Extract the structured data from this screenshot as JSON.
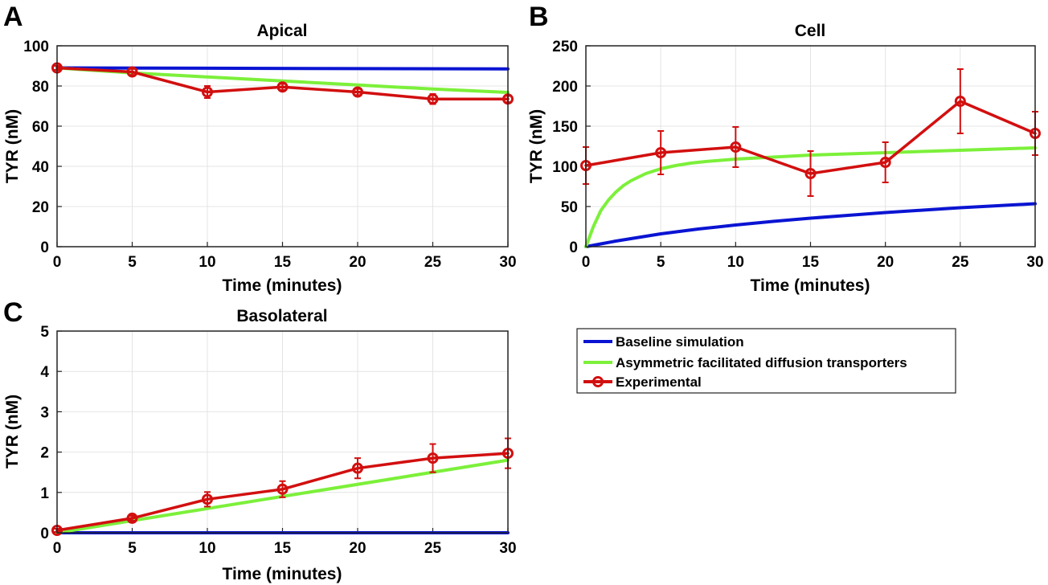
{
  "chart_data": [
    {
      "panel": "A",
      "type": "line",
      "title": "Apical",
      "xlabel": "Time (minutes)",
      "ylabel": "TYR (nM)",
      "xlim": [
        0,
        30
      ],
      "ylim": [
        0,
        100
      ],
      "xticks": [
        0,
        5,
        10,
        15,
        20,
        25,
        30
      ],
      "yticks": [
        0,
        20,
        40,
        60,
        80,
        100
      ],
      "grid": true,
      "series": [
        {
          "name": "Baseline simulation",
          "color": "#0a14d2",
          "style": "line",
          "x": [
            0,
            30
          ],
          "y": [
            89,
            88.5
          ]
        },
        {
          "name": "Asymmetric facilitated diffusion transporters",
          "color": "#7cf03a",
          "style": "line",
          "x": [
            0,
            5,
            10,
            15,
            20,
            25,
            30
          ],
          "y": [
            89,
            86.5,
            84.5,
            82.5,
            80.5,
            78.5,
            76.8
          ]
        },
        {
          "name": "Experimental",
          "color": "#d20f0f",
          "style": "marker-line",
          "x": [
            0,
            5,
            10,
            15,
            20,
            25,
            30
          ],
          "y": [
            89,
            87,
            77,
            79.5,
            77,
            73.5,
            73.5
          ],
          "err": [
            1,
            1.5,
            3,
            1.5,
            1.5,
            2.5,
            1.5
          ]
        }
      ]
    },
    {
      "panel": "B",
      "type": "line",
      "title": "Cell",
      "xlabel": "Time (minutes)",
      "ylabel": "TYR (nM)",
      "xlim": [
        0,
        30
      ],
      "ylim": [
        0,
        250
      ],
      "xticks": [
        0,
        5,
        10,
        15,
        20,
        25,
        30
      ],
      "yticks": [
        0,
        50,
        100,
        150,
        200,
        250
      ],
      "grid": true,
      "series": [
        {
          "name": "Baseline simulation",
          "color": "#0a14d2",
          "style": "line",
          "x": [
            0,
            1,
            2,
            3,
            5,
            7.5,
            10,
            12.5,
            15,
            17.5,
            20,
            22.5,
            25,
            27.5,
            30
          ],
          "y": [
            0,
            3.5,
            7,
            10,
            16,
            22,
            27,
            31.5,
            35.5,
            39,
            42.5,
            45.5,
            48.5,
            51,
            53.5
          ]
        },
        {
          "name": "Asymmetric facilitated diffusion transporters",
          "color": "#7cf03a",
          "style": "line",
          "x": [
            0,
            0.5,
            1,
            1.5,
            2,
            2.5,
            3,
            4,
            5,
            6,
            7,
            8,
            10,
            12,
            15,
            20,
            25,
            30
          ],
          "y": [
            0,
            25,
            45,
            58,
            68,
            76,
            82,
            91,
            97,
            101,
            104,
            106,
            109,
            111,
            114,
            117,
            120,
            123
          ]
        },
        {
          "name": "Experimental",
          "color": "#d20f0f",
          "style": "marker-line",
          "x": [
            0,
            5,
            10,
            15,
            20,
            25,
            30
          ],
          "y": [
            101,
            117,
            124,
            91,
            105,
            181,
            141
          ],
          "err": [
            23,
            27,
            25,
            28,
            25,
            40,
            27
          ]
        }
      ]
    },
    {
      "panel": "C",
      "type": "line",
      "title": "Basolateral",
      "xlabel": "Time (minutes)",
      "ylabel": "TYR (nM)",
      "xlim": [
        0,
        30
      ],
      "ylim": [
        0,
        5
      ],
      "xticks": [
        0,
        5,
        10,
        15,
        20,
        25,
        30
      ],
      "yticks": [
        0,
        1,
        2,
        3,
        4,
        5
      ],
      "grid": true,
      "series": [
        {
          "name": "Baseline simulation",
          "color": "#0a14d2",
          "style": "line",
          "x": [
            0,
            30
          ],
          "y": [
            0,
            0
          ]
        },
        {
          "name": "Asymmetric facilitated diffusion transporters",
          "color": "#7cf03a",
          "style": "line",
          "x": [
            0,
            30
          ],
          "y": [
            0,
            1.8
          ]
        },
        {
          "name": "Experimental",
          "color": "#d20f0f",
          "style": "marker-line",
          "x": [
            0,
            5,
            10,
            15,
            20,
            25,
            30
          ],
          "y": [
            0.06,
            0.36,
            0.83,
            1.08,
            1.6,
            1.85,
            1.97
          ],
          "err": [
            0.04,
            0.06,
            0.18,
            0.2,
            0.25,
            0.35,
            0.37
          ]
        }
      ]
    }
  ],
  "legend": {
    "placement": "lower-right",
    "items": [
      {
        "label": "Baseline simulation",
        "color": "#0a14d2",
        "marker": false
      },
      {
        "label": "Asymmetric facilitated diffusion transporters",
        "color": "#7cf03a",
        "marker": false
      },
      {
        "label": "Experimental",
        "color": "#d20f0f",
        "marker": true
      }
    ]
  }
}
